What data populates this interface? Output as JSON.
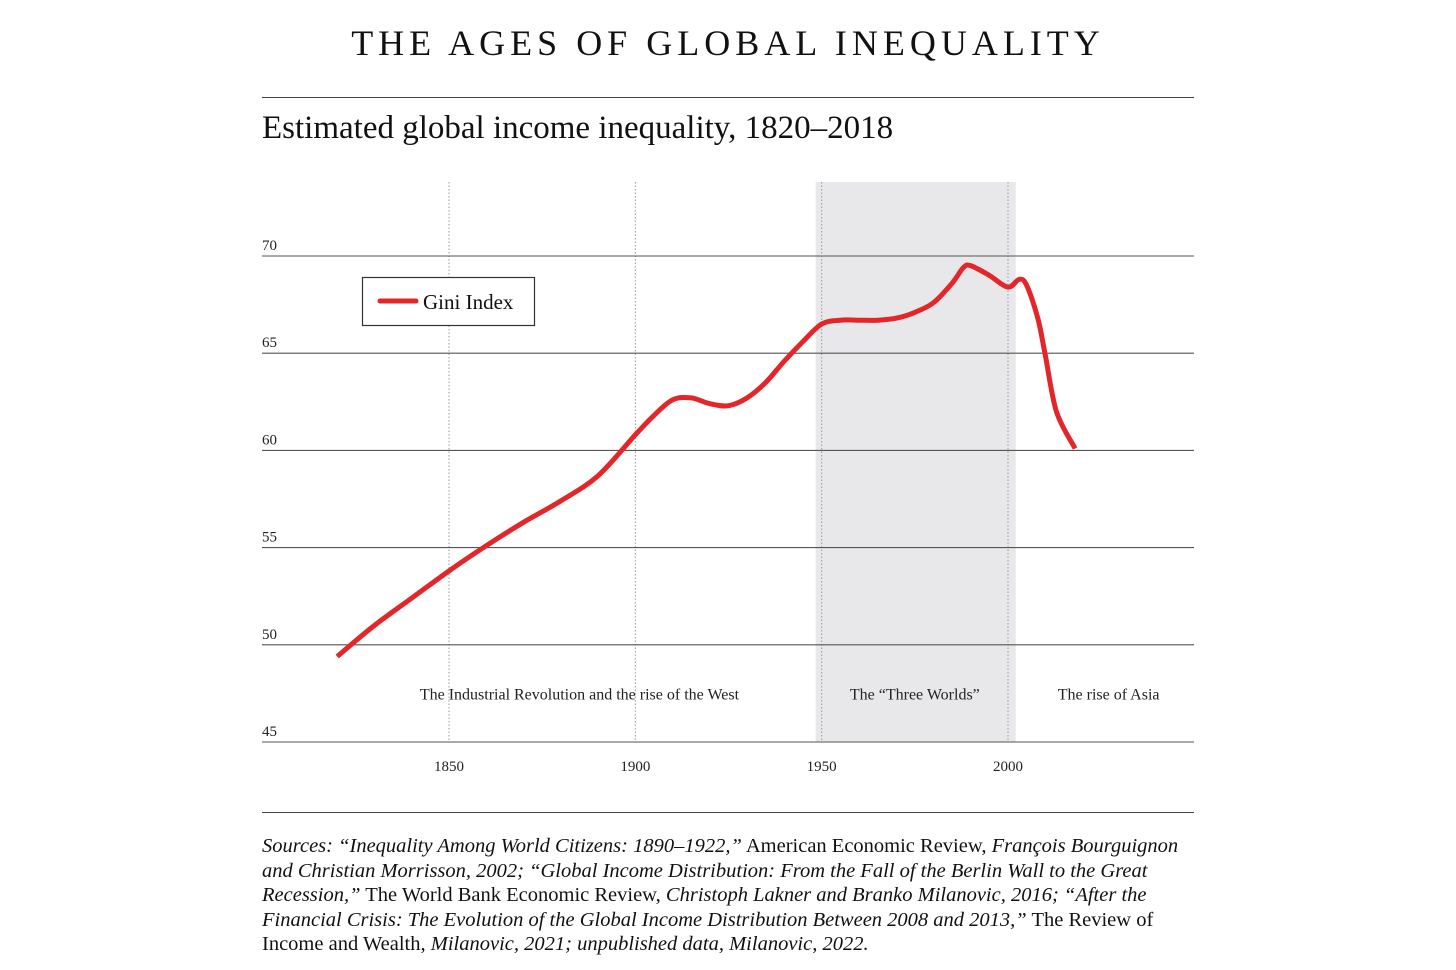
{
  "header": {
    "title": "THE AGES OF GLOBAL INEQUALITY",
    "subtitle": "Estimated global income inequality, 1820–2018"
  },
  "chart_data": {
    "type": "line",
    "title": "Estimated global income inequality, 1820–2018",
    "xlabel": "",
    "ylabel": "",
    "x_ticks": [
      1850,
      1900,
      1950,
      2000
    ],
    "y_ticks": [
      45,
      50,
      55,
      60,
      65,
      70
    ],
    "xlim": [
      1770,
      2020
    ],
    "ylim": [
      45,
      73
    ],
    "grid": true,
    "legend_position": "top-left",
    "line_color": "#e3262a",
    "shade_color": "#e8e8ea",
    "series": [
      {
        "name": "Gini Index",
        "x": [
          1820,
          1830,
          1840,
          1850,
          1860,
          1870,
          1880,
          1890,
          1900,
          1905,
          1910,
          1915,
          1920,
          1925,
          1930,
          1935,
          1940,
          1945,
          1950,
          1955,
          1960,
          1965,
          1970,
          1975,
          1980,
          1985,
          1988,
          1990,
          1995,
          2000,
          2003,
          2005,
          2008,
          2010,
          2013,
          2018
        ],
        "y": [
          49.4,
          51.0,
          52.4,
          53.8,
          55.1,
          56.3,
          57.4,
          58.7,
          60.8,
          61.8,
          62.6,
          62.7,
          62.4,
          62.3,
          62.7,
          63.5,
          64.6,
          65.6,
          66.5,
          66.7,
          66.7,
          66.7,
          66.8,
          67.1,
          67.6,
          68.6,
          69.4,
          69.5,
          69.0,
          68.4,
          68.8,
          68.5,
          66.8,
          64.9,
          62.0,
          60.1
        ]
      }
    ],
    "shaded_regions": [
      {
        "start": 1950,
        "end": 2001
      }
    ],
    "annotations": [
      {
        "text": "The Industrial Revolution and the rise of the West",
        "x": 1885,
        "y": 47.5
      },
      {
        "text": "The “Three Worlds”",
        "x": 1975,
        "y": 47.5
      },
      {
        "text": "The rise of Asia",
        "x": 2027,
        "y": 47.5
      }
    ]
  },
  "sources": {
    "part1": "Sources: “Inequality Among World Citizens: 1890–1922,”",
    "part2": " American Economic Review, ",
    "part3": "François Bourguignon and Christian Morrisson, 2002; “Global Income Distribution: From the Fall of the Berlin Wall to the Great Recession,”",
    "part4": " The World Bank Economic Review, ",
    "part5": "Christoph Lakner and Branko Milanovic, 2016; “After the Financial Crisis: The Evolution of the Global Income Distribution Between 2008 and 2013,”",
    "part6": " The Review of Income and Wealth, ",
    "part7": "Milanovic, 2021; unpublished data, Milanovic, 2022."
  }
}
